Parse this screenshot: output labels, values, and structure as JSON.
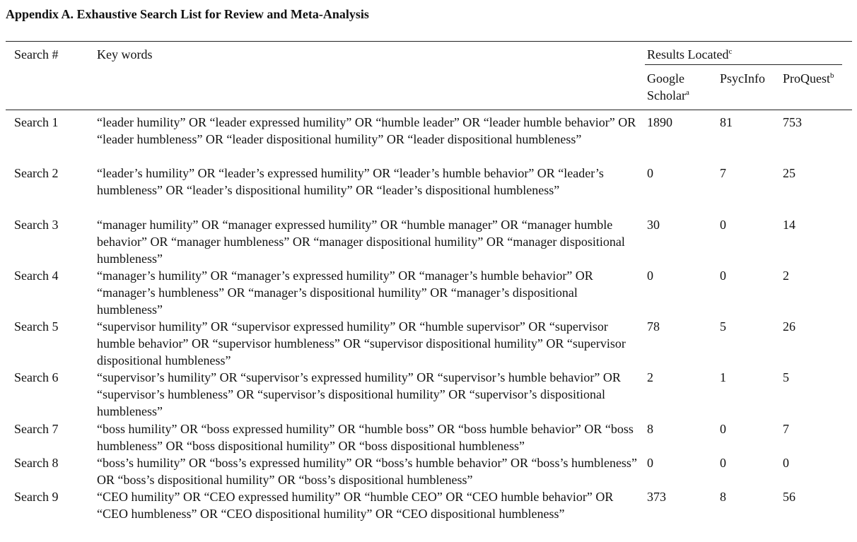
{
  "title": "Appendix A. Exhaustive Search List for Review and Meta-Analysis",
  "header": {
    "search": "Search #",
    "keywords": "Key words",
    "results": "Results Located",
    "results_sup": "c",
    "google_line1": "Google",
    "google_line2": "Scholar",
    "google_sup": "a",
    "psycinfo": "PsycInfo",
    "proquest": "ProQuest",
    "proquest_sup": "b"
  },
  "rows": [
    {
      "search": "Search 1",
      "keywords": "“leader humility” OR “leader expressed humility” OR “humble leader” OR “leader humble behavior” OR “leader humbleness” OR “leader dispositional humility” OR “leader dispositional humbleness”",
      "google": "1890",
      "psycinfo": "81",
      "proquest": "753"
    },
    {
      "search": "Search 2",
      "keywords": "“leader’s humility” OR “leader’s expressed humility” OR “leader’s humble behavior” OR “leader’s humbleness” OR “leader’s dispositional humility” OR “leader’s dispositional humbleness”",
      "google": "0",
      "psycinfo": "7",
      "proquest": "25"
    },
    {
      "search": "Search 3",
      "keywords": "“manager humility” OR “manager expressed humility” OR “humble manager” OR “manager humble behavior” OR “manager humbleness” OR “manager dispositional humility” OR “manager dispositional humbleness”",
      "google": "30",
      "psycinfo": "0",
      "proquest": "14"
    },
    {
      "search": "Search 4",
      "keywords": "“manager’s humility” OR “manager’s expressed humility” OR “manager’s humble behavior” OR “manager’s humbleness” OR “manager’s dispositional humility” OR “manager’s dispositional humbleness”",
      "google": "0",
      "psycinfo": "0",
      "proquest": "2"
    },
    {
      "search": "Search 5",
      "keywords": "“supervisor humility” OR “supervisor expressed humility” OR “humble supervisor” OR “supervisor humble behavior” OR “supervisor humbleness” OR “supervisor dispositional humility” OR “supervisor dispositional humbleness”",
      "google": "78",
      "psycinfo": "5",
      "proquest": "26"
    },
    {
      "search": "Search 6",
      "keywords": "“supervisor’s humility” OR “supervisor’s expressed humility” OR “supervisor’s humble behavior” OR “supervisor’s humbleness” OR “supervisor’s dispositional humility” OR “supervisor’s dispositional humbleness”",
      "google": "2",
      "psycinfo": "1",
      "proquest": "5"
    },
    {
      "search": "Search 7",
      "keywords": "“boss humility” OR “boss expressed humility” OR “humble boss” OR “boss humble behavior” OR “boss humbleness” OR “boss dispositional humility” OR “boss dispositional humbleness”",
      "google": "8",
      "psycinfo": "0",
      "proquest": "7"
    },
    {
      "search": "Search 8",
      "keywords": "“boss’s humility” OR “boss’s expressed humility” OR “boss’s humble behavior” OR “boss’s humbleness” OR “boss’s dispositional humility” OR “boss’s dispositional humbleness”",
      "google": "0",
      "psycinfo": "0",
      "proquest": "0"
    },
    {
      "search": "Search 9",
      "keywords": "“CEO humility” OR “CEO expressed humility” OR “humble CEO” OR “CEO humble behavior” OR “CEO humbleness” OR “CEO dispositional humility” OR “CEO dispositional humbleness”",
      "google": "373",
      "psycinfo": "8",
      "proquest": "56"
    }
  ]
}
